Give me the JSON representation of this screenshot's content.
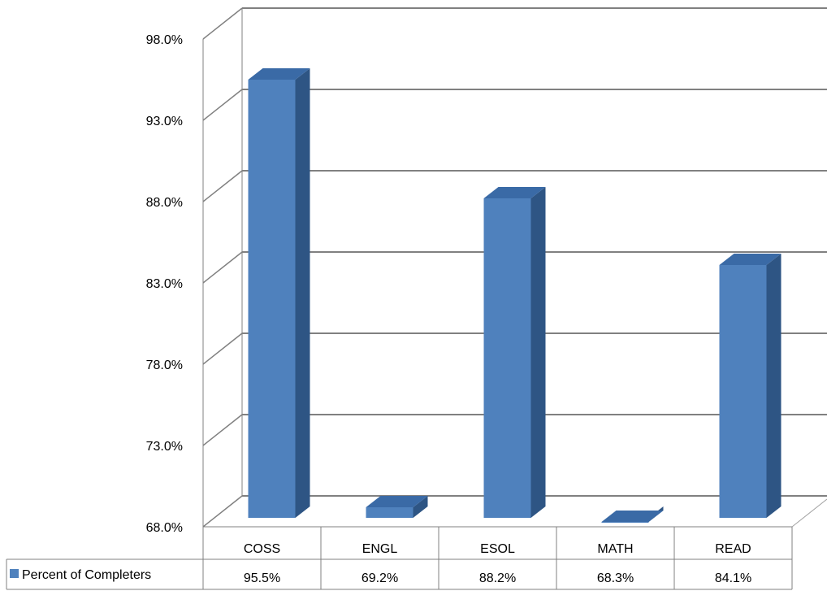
{
  "chart_data": {
    "type": "bar",
    "title": "",
    "xlabel": "",
    "ylabel": "",
    "categories": [
      "COSS",
      "ENGL",
      "ESOL",
      "MATH",
      "READ"
    ],
    "series": [
      {
        "name": "Percent of Completers",
        "values": [
          95.5,
          69.2,
          88.2,
          68.3,
          84.1
        ],
        "labels": [
          "95.5%",
          "69.2%",
          "88.2%",
          "68.3%",
          "84.1%"
        ]
      }
    ],
    "ylim": [
      68,
      98
    ],
    "yticks": [
      68,
      73,
      78,
      83,
      88,
      93,
      98
    ],
    "ytick_labels": [
      "68.0%",
      "73.0%",
      "78.0%",
      "83.0%",
      "88.0%",
      "93.0%",
      "98.0%"
    ],
    "grid": true,
    "style": "3d-column",
    "legend": "data-table-below",
    "colors": {
      "bar_front": "#4f81bd",
      "bar_top": "#3a6aa6",
      "bar_side": "#2e5584",
      "grid": "#808080"
    }
  }
}
